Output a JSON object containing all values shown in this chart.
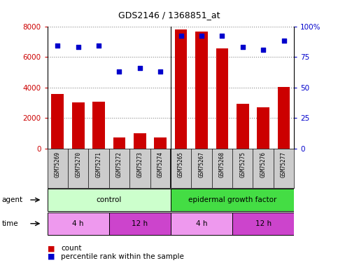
{
  "title": "GDS2146 / 1368851_at",
  "samples": [
    "GSM75269",
    "GSM75270",
    "GSM75271",
    "GSM75272",
    "GSM75273",
    "GSM75274",
    "GSM75265",
    "GSM75267",
    "GSM75268",
    "GSM75275",
    "GSM75276",
    "GSM75277"
  ],
  "counts": [
    3550,
    3000,
    3050,
    750,
    1000,
    750,
    7800,
    7650,
    6550,
    2950,
    2700,
    4050
  ],
  "percentiles": [
    84,
    83,
    84,
    63,
    66,
    63,
    92,
    92,
    92,
    83,
    81,
    88
  ],
  "bar_color": "#cc0000",
  "dot_color": "#0000cc",
  "ylim_left": [
    0,
    8000
  ],
  "ylim_right": [
    0,
    100
  ],
  "yticks_left": [
    0,
    2000,
    4000,
    6000,
    8000
  ],
  "yticks_right": [
    0,
    25,
    50,
    75,
    100
  ],
  "ytick_labels_right": [
    "0",
    "25",
    "50",
    "75",
    "100%"
  ],
  "grid_color": "#888888",
  "agent_blocks": [
    {
      "label": "control",
      "start": 0,
      "end": 6,
      "color": "#ccffcc"
    },
    {
      "label": "epidermal growth factor",
      "start": 6,
      "end": 12,
      "color": "#44dd44"
    }
  ],
  "time_blocks": [
    {
      "label": "4 h",
      "start": 0,
      "end": 3,
      "color": "#ee99ee"
    },
    {
      "label": "12 h",
      "start": 3,
      "end": 6,
      "color": "#cc44cc"
    },
    {
      "label": "4 h",
      "start": 6,
      "end": 9,
      "color": "#ee99ee"
    },
    {
      "label": "12 h",
      "start": 9,
      "end": 12,
      "color": "#cc44cc"
    }
  ],
  "header_bg": "#cccccc",
  "bg_color": "#ffffff",
  "legend_count_color": "#cc0000",
  "legend_percentile_color": "#0000cc"
}
